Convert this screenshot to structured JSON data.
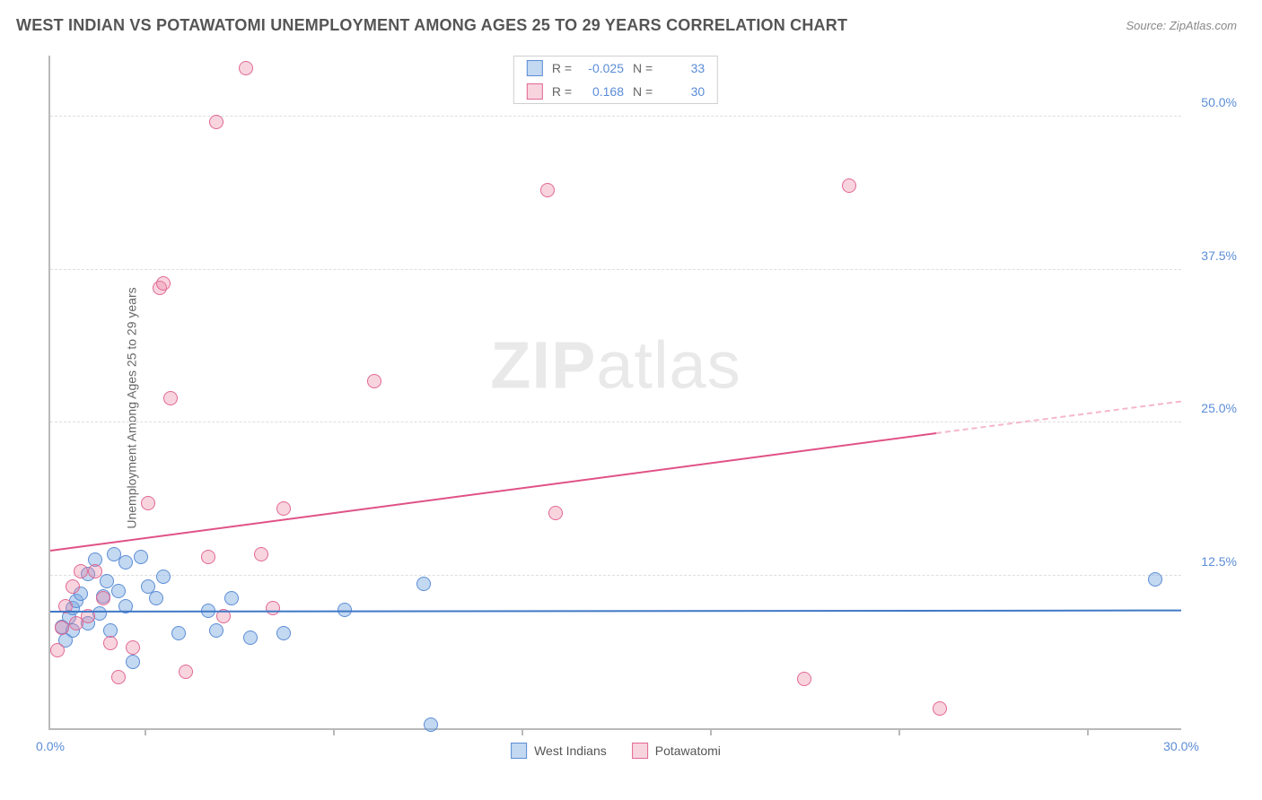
{
  "header": {
    "title": "WEST INDIAN VS POTAWATOMI UNEMPLOYMENT AMONG AGES 25 TO 29 YEARS CORRELATION CHART",
    "source": "Source: ZipAtlas.com"
  },
  "ylabel": "Unemployment Among Ages 25 to 29 years",
  "watermark_zip": "ZIP",
  "watermark_atlas": "atlas",
  "chart": {
    "type": "scatter",
    "xlim": [
      0,
      30
    ],
    "ylim": [
      0,
      55
    ],
    "x_axis_min_label": "0.0%",
    "x_axis_max_label": "30.0%",
    "x_ticks": [
      2.5,
      7.5,
      12.5,
      17.5,
      22.5,
      27.5
    ],
    "y_ticks": [
      {
        "v": 12.5,
        "label": "12.5%"
      },
      {
        "v": 25.0,
        "label": "25.0%"
      },
      {
        "v": 37.5,
        "label": "37.5%"
      },
      {
        "v": 50.0,
        "label": "50.0%"
      }
    ],
    "background_color": "#ffffff",
    "grid_color": "#dedede",
    "axis_color": "#b9b9b9",
    "series": [
      {
        "name": "West Indians",
        "fill": "rgba(121,169,225,0.45)",
        "stroke": "#5b8dd6",
        "marker_size": 16,
        "R": "-0.025",
        "N": "33",
        "trend": {
          "x1": 0,
          "y1": 9.6,
          "x2": 30,
          "y2": 9.7,
          "color": "#3f78c6",
          "width": 2.2
        },
        "points": [
          [
            0.3,
            8.3
          ],
          [
            0.4,
            7.2
          ],
          [
            0.5,
            9.1
          ],
          [
            0.6,
            8.0
          ],
          [
            0.6,
            9.8
          ],
          [
            0.7,
            10.4
          ],
          [
            0.8,
            11.0
          ],
          [
            1.0,
            8.6
          ],
          [
            1.0,
            12.6
          ],
          [
            1.2,
            13.8
          ],
          [
            1.3,
            9.4
          ],
          [
            1.4,
            10.8
          ],
          [
            1.5,
            12.0
          ],
          [
            1.6,
            8.0
          ],
          [
            1.7,
            14.2
          ],
          [
            1.8,
            11.2
          ],
          [
            2.0,
            10.0
          ],
          [
            2.0,
            13.6
          ],
          [
            2.2,
            5.4
          ],
          [
            2.4,
            14.0
          ],
          [
            2.6,
            11.6
          ],
          [
            2.8,
            10.6
          ],
          [
            3.0,
            12.4
          ],
          [
            3.4,
            7.8
          ],
          [
            4.2,
            9.6
          ],
          [
            4.4,
            8.0
          ],
          [
            4.8,
            10.6
          ],
          [
            5.3,
            7.4
          ],
          [
            6.2,
            7.8
          ],
          [
            7.8,
            9.7
          ],
          [
            9.9,
            11.8
          ],
          [
            10.1,
            0.3
          ],
          [
            29.3,
            12.2
          ]
        ]
      },
      {
        "name": "Potawatomi",
        "fill": "rgba(234,132,163,0.35)",
        "stroke": "#e16893",
        "marker_size": 16,
        "R": "0.168",
        "N": "30",
        "trend": {
          "x1": 0,
          "y1": 14.6,
          "x2": 23.5,
          "y2": 24.2,
          "color": "#e05286",
          "width": 2.2
        },
        "trend_extend": {
          "x1": 23.5,
          "y1": 24.2,
          "x2": 30,
          "y2": 26.8,
          "color": "#f4b7cd",
          "width": 2.0,
          "dash": true
        },
        "points": [
          [
            0.2,
            6.4
          ],
          [
            0.3,
            8.2
          ],
          [
            0.4,
            10.0
          ],
          [
            0.6,
            11.6
          ],
          [
            0.7,
            8.6
          ],
          [
            0.8,
            12.8
          ],
          [
            1.0,
            9.2
          ],
          [
            1.2,
            12.8
          ],
          [
            1.4,
            10.6
          ],
          [
            1.6,
            7.0
          ],
          [
            1.8,
            4.2
          ],
          [
            2.2,
            6.6
          ],
          [
            2.6,
            18.4
          ],
          [
            2.9,
            36.0
          ],
          [
            3.0,
            36.4
          ],
          [
            3.2,
            27.0
          ],
          [
            3.6,
            4.6
          ],
          [
            4.2,
            14.0
          ],
          [
            4.4,
            49.6
          ],
          [
            4.6,
            9.2
          ],
          [
            5.2,
            54.0
          ],
          [
            5.6,
            14.2
          ],
          [
            5.9,
            9.8
          ],
          [
            6.2,
            18.0
          ],
          [
            8.6,
            28.4
          ],
          [
            13.2,
            44.0
          ],
          [
            13.4,
            17.6
          ],
          [
            20.0,
            4.0
          ],
          [
            21.2,
            44.4
          ],
          [
            23.6,
            1.6
          ]
        ]
      }
    ]
  },
  "legend_top": [
    {
      "fill": "rgba(121,169,225,0.45)",
      "stroke": "#5b8dd6",
      "R": "-0.025",
      "N": "33"
    },
    {
      "fill": "rgba(234,132,163,0.35)",
      "stroke": "#e16893",
      "R": "0.168",
      "N": "30"
    }
  ],
  "legend_bottom": [
    {
      "fill": "rgba(121,169,225,0.45)",
      "stroke": "#5b8dd6",
      "label": "West Indians"
    },
    {
      "fill": "rgba(234,132,163,0.35)",
      "stroke": "#e16893",
      "label": "Potawatomi"
    }
  ],
  "labels": {
    "r_prefix": "R =",
    "n_prefix": "N ="
  }
}
